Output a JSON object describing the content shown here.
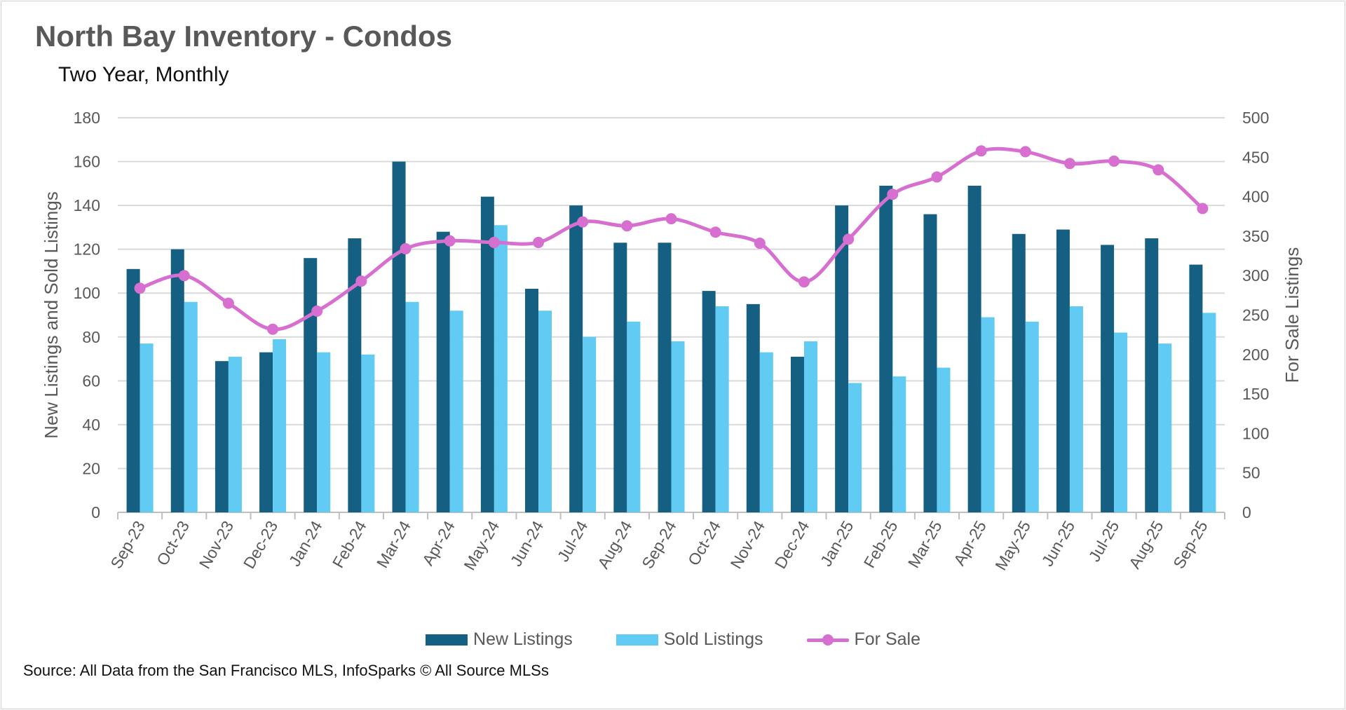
{
  "title": "North Bay Inventory - Condos",
  "subtitle": "Two Year, Monthly",
  "source": "Source: All Data from the San Francisco MLS, InfoSparks © All Source MLSs",
  "chart_data": {
    "type": "bar+line",
    "title": "North Bay Inventory - Condos",
    "subtitle": "Two Year, Monthly",
    "categories": [
      "Sep-23",
      "Oct-23",
      "Nov-23",
      "Dec-23",
      "Jan-24",
      "Feb-24",
      "Mar-24",
      "Apr-24",
      "May-24",
      "Jun-24",
      "Jul-24",
      "Aug-24",
      "Sep-24",
      "Oct-24",
      "Nov-24",
      "Dec-24",
      "Jan-25",
      "Feb-25",
      "Mar-25",
      "Apr-25",
      "May-25",
      "Jun-25",
      "Jul-25",
      "Aug-25",
      "Sep-25"
    ],
    "ylabel": "New Listings and Sold Listings",
    "ylim": [
      0,
      180
    ],
    "yticks": [
      "0",
      "20",
      "40",
      "60",
      "80",
      "100",
      "120",
      "140",
      "160",
      "180"
    ],
    "y2label": "For Sale Listings",
    "y2lim": [
      0,
      500
    ],
    "y2ticks": [
      "0",
      "50",
      "100",
      "150",
      "200",
      "250",
      "300",
      "350",
      "400",
      "450",
      "500"
    ],
    "grid": true,
    "legend_position": "bottom",
    "series": [
      {
        "name": "New Listings",
        "type": "bar",
        "axis": "left",
        "color": "#156082",
        "values": [
          111,
          120,
          69,
          73,
          116,
          125,
          160,
          128,
          144,
          102,
          140,
          123,
          123,
          101,
          95,
          71,
          140,
          149,
          136,
          149,
          127,
          129,
          122,
          125,
          113
        ]
      },
      {
        "name": "Sold Listings",
        "type": "bar",
        "axis": "left",
        "color": "#61cbf3",
        "values": [
          77,
          96,
          71,
          79,
          73,
          72,
          96,
          92,
          131,
          92,
          80,
          87,
          78,
          94,
          73,
          78,
          59,
          62,
          66,
          89,
          87,
          94,
          82,
          77,
          91
        ]
      },
      {
        "name": "For Sale",
        "type": "line",
        "axis": "right",
        "color": "#d66fcf",
        "values": [
          284,
          300,
          265,
          232,
          255,
          293,
          334,
          344,
          342,
          342,
          368,
          363,
          372,
          355,
          341,
          292,
          346,
          403,
          425,
          458,
          457,
          442,
          445,
          434,
          385
        ]
      }
    ]
  }
}
